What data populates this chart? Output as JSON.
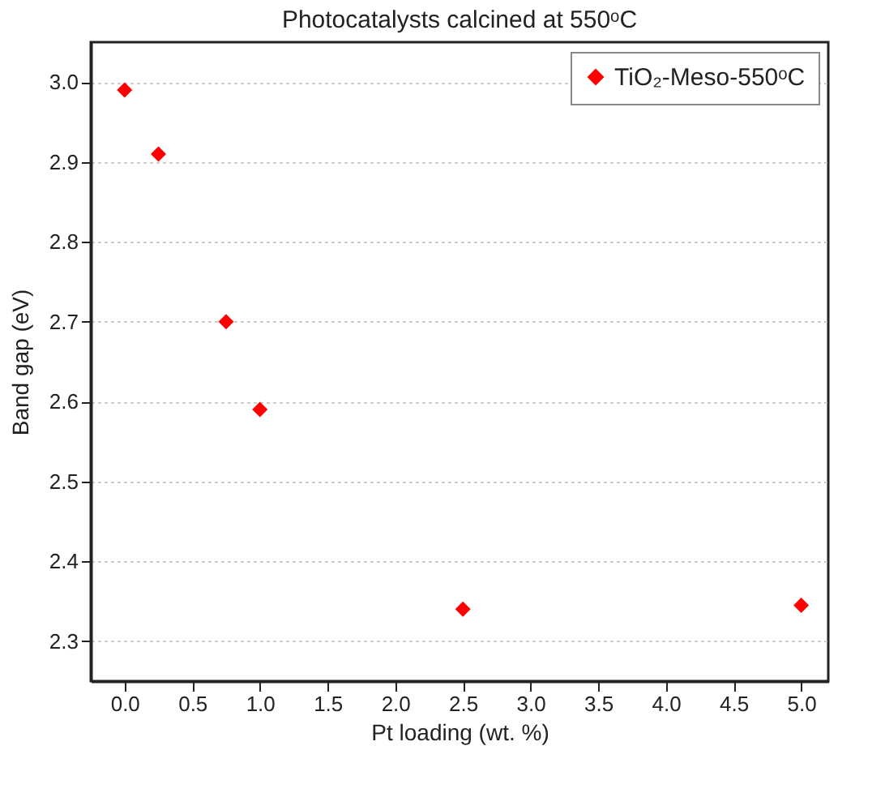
{
  "chart_data": {
    "type": "scatter",
    "title": "Photocatalysts calcined at 550ᵒC",
    "xlabel": "Pt loading (wt. %)",
    "ylabel": "Band gap (eV)",
    "x": [
      0,
      0.25,
      0.75,
      1.0,
      2.5,
      5.0
    ],
    "series": [
      {
        "name": "TiO₂-Meso-550ᵒC",
        "color": "#ff0000",
        "values": [
          2.99,
          2.91,
          2.7,
          2.59,
          2.34,
          2.345
        ]
      }
    ],
    "xlim": [
      -0.25,
      5.2
    ],
    "xticks": [
      {
        "value": 0,
        "label": "0.0"
      },
      {
        "value": 0.5,
        "label": "0.5"
      },
      {
        "value": 1,
        "label": "1.0"
      },
      {
        "value": 1.5,
        "label": "1.5"
      },
      {
        "value": 2,
        "label": "2.0"
      },
      {
        "value": 2.5,
        "label": "2.5"
      },
      {
        "value": 3,
        "label": "3.0"
      },
      {
        "value": 3.5,
        "label": "3.5"
      },
      {
        "value": 4,
        "label": "4.0"
      },
      {
        "value": 4.5,
        "label": "4.5"
      },
      {
        "value": 5,
        "label": "5.0"
      }
    ],
    "ylim": [
      2.25,
      3.05
    ],
    "yticks": [
      {
        "value": 2.3,
        "label": "2.3"
      },
      {
        "value": 2.4,
        "label": "2.4"
      },
      {
        "value": 2.5,
        "label": "2.5"
      },
      {
        "value": 2.6,
        "label": "2.6"
      },
      {
        "value": 2.7,
        "label": "2.7"
      },
      {
        "value": 2.8,
        "label": "2.8"
      },
      {
        "value": 2.9,
        "label": "2.9"
      },
      {
        "value": 3.0,
        "label": "3.0"
      }
    ],
    "grid": "y",
    "legend": "top right",
    "marker": "diamond"
  }
}
